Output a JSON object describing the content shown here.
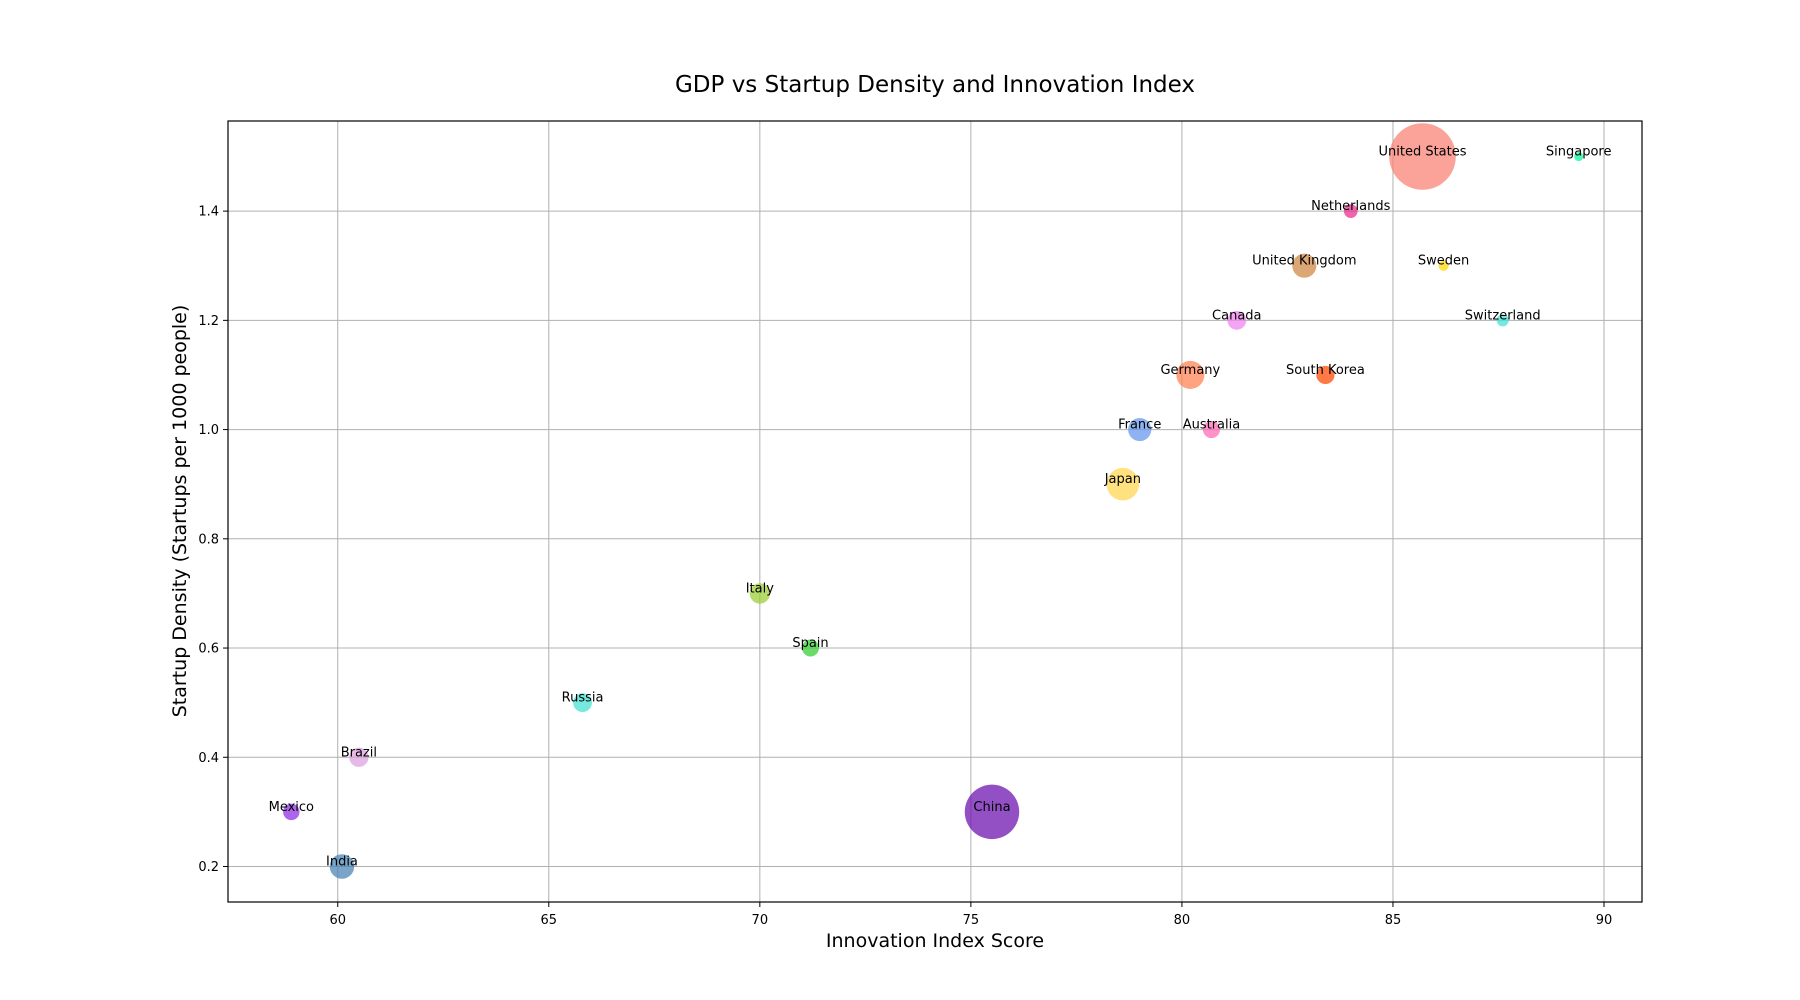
{
  "chart_data": {
    "type": "scatter",
    "title": "GDP vs Startup Density and Innovation Index",
    "xlabel": "Innovation Index Score",
    "ylabel": "Startup Density (Startups per 1000 people)",
    "xlim": [
      57.4,
      90.9
    ],
    "ylim": [
      0.135,
      1.565
    ],
    "xticks": [
      60,
      65,
      70,
      75,
      80,
      85,
      90
    ],
    "yticks": [
      0.2,
      0.4,
      0.6,
      0.8,
      1.0,
      1.2,
      1.4
    ],
    "xtick_labels": [
      "60",
      "65",
      "70",
      "75",
      "80",
      "85",
      "90"
    ],
    "ytick_labels": [
      "0.2",
      "0.4",
      "0.6",
      "0.8",
      "1.0",
      "1.2",
      "1.4"
    ],
    "grid": true,
    "points": [
      {
        "label": "United States",
        "x": 85.7,
        "y": 1.5,
        "size": 21.4,
        "color": "#fa8072"
      },
      {
        "label": "Singapore",
        "x": 89.4,
        "y": 1.5,
        "size": 0.4,
        "color": "#00fa9a"
      },
      {
        "label": "Netherlands",
        "x": 84.0,
        "y": 1.4,
        "size": 0.9,
        "color": "#e7298a"
      },
      {
        "label": "United Kingdom",
        "x": 82.9,
        "y": 1.3,
        "size": 2.8,
        "color": "#cd853f"
      },
      {
        "label": "Sweden",
        "x": 86.2,
        "y": 1.3,
        "size": 0.5,
        "color": "#ffd700"
      },
      {
        "label": "Canada",
        "x": 81.3,
        "y": 1.2,
        "size": 1.7,
        "color": "#ee82ee"
      },
      {
        "label": "Switzerland",
        "x": 87.6,
        "y": 1.2,
        "size": 0.7,
        "color": "#40e0d0"
      },
      {
        "label": "Germany",
        "x": 80.2,
        "y": 1.1,
        "size": 3.8,
        "color": "#ff7f50"
      },
      {
        "label": "South Korea",
        "x": 83.4,
        "y": 1.1,
        "size": 1.6,
        "color": "#ff4500"
      },
      {
        "label": "France",
        "x": 79.0,
        "y": 1.0,
        "size": 2.6,
        "color": "#6495ed"
      },
      {
        "label": "Australia",
        "x": 80.7,
        "y": 1.0,
        "size": 1.4,
        "color": "#ff69b4"
      },
      {
        "label": "Japan",
        "x": 78.6,
        "y": 0.9,
        "size": 5.1,
        "color": "#ffd54f"
      },
      {
        "label": "Italy",
        "x": 70.0,
        "y": 0.7,
        "size": 2.0,
        "color": "#9acd32"
      },
      {
        "label": "Spain",
        "x": 71.2,
        "y": 0.6,
        "size": 1.4,
        "color": "#32cd32"
      },
      {
        "label": "Russia",
        "x": 65.8,
        "y": 0.5,
        "size": 1.7,
        "color": "#40e0d0"
      },
      {
        "label": "Brazil",
        "x": 60.5,
        "y": 0.4,
        "size": 1.8,
        "color": "#dda0dd"
      },
      {
        "label": "Mexico",
        "x": 58.9,
        "y": 0.3,
        "size": 1.3,
        "color": "#8a2be2"
      },
      {
        "label": "China",
        "x": 75.5,
        "y": 0.3,
        "size": 14.3,
        "color": "#6a0dad"
      },
      {
        "label": "India",
        "x": 60.1,
        "y": 0.2,
        "size": 2.9,
        "color": "#4682b4"
      }
    ]
  }
}
